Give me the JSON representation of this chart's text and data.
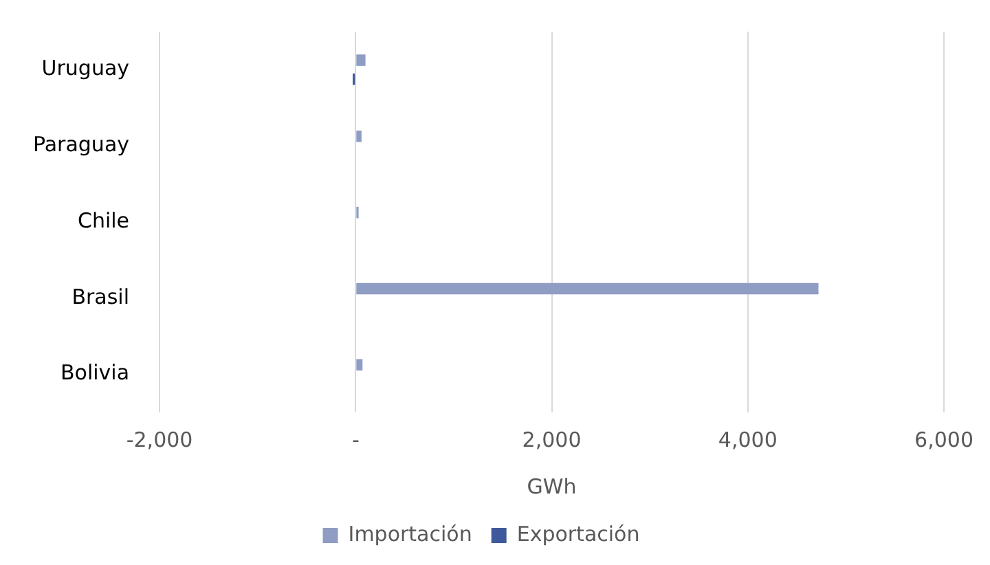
{
  "chart_data": {
    "type": "bar",
    "orientation": "horizontal",
    "xlabel": "GWh",
    "categories": [
      "Uruguay",
      "Paraguay",
      "Chile",
      "Brasil",
      "Bolivia"
    ],
    "series": [
      {
        "name": "Importación",
        "color": "#8f9dc4",
        "values": [
          100,
          60,
          30,
          4720,
          70
        ]
      },
      {
        "name": "Exportación",
        "color": "#3f5a9c",
        "values": [
          -30,
          0,
          0,
          0,
          0
        ]
      }
    ],
    "xlim": [
      -2000,
      6000
    ],
    "xticks": [
      {
        "value": -2000,
        "label": "-2,000"
      },
      {
        "value": 0,
        "label": "-"
      },
      {
        "value": 2000,
        "label": "2,000"
      },
      {
        "value": 4000,
        "label": "4,000"
      },
      {
        "value": 6000,
        "label": "6,000"
      }
    ],
    "grid": "x",
    "legend": "bottom"
  }
}
